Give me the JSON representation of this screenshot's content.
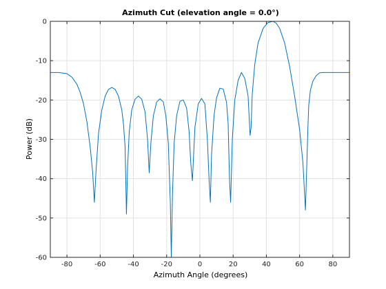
{
  "chart_data": {
    "type": "line",
    "title": "Azimuth Cut (elevation angle = 0.0°)",
    "xlabel": "Azimuth Angle (degrees)",
    "ylabel": "Power (dB)",
    "xlim": [
      -90,
      90
    ],
    "ylim": [
      -60,
      0
    ],
    "xticks": [
      -80,
      -60,
      -40,
      -20,
      0,
      20,
      40,
      60,
      80
    ],
    "yticks": [
      0,
      -10,
      -20,
      -30,
      -40,
      -50,
      -60
    ],
    "grid": true,
    "line_color": "#0072bd",
    "series": [
      {
        "x": [
          -90,
          -85,
          -80,
          -77,
          -74,
          -72,
          -70,
          -68,
          -66,
          -64.5,
          -63.5,
          -62.5,
          -61,
          -59,
          -57,
          -55,
          -53,
          -51,
          -49,
          -47,
          -46,
          -45,
          -44.2,
          -43.5,
          -42.5,
          -41,
          -39,
          -37,
          -35,
          -33,
          -31.5,
          -30.5,
          -29.5,
          -28,
          -26,
          -24,
          -22,
          -20.5,
          -19,
          -17.8,
          -17.2,
          -16.5,
          -15.5,
          -14,
          -12,
          -10,
          -8,
          -6.5,
          -5.5,
          -4.5,
          -3,
          -1,
          1,
          3,
          4.5,
          5.5,
          6.3,
          7,
          8.5,
          10,
          12,
          14,
          16,
          17,
          17.8,
          18.5,
          19.5,
          21,
          23,
          25,
          27,
          29,
          30.2,
          30.8,
          31.5,
          33,
          35,
          38,
          41,
          44,
          46,
          48,
          51,
          54,
          57,
          60,
          62,
          63.5,
          64.5,
          65,
          65.5,
          66.5,
          68,
          70,
          72,
          74,
          77,
          80,
          85,
          90
        ],
        "y": [
          -13,
          -13,
          -13.3,
          -14.2,
          -16,
          -18.1,
          -21,
          -25.5,
          -32,
          -38.5,
          -46,
          -38,
          -28.5,
          -22.5,
          -19,
          -17.3,
          -16.8,
          -17.3,
          -19,
          -22.5,
          -26,
          -32,
          -49,
          -37,
          -28,
          -22.5,
          -19.8,
          -19,
          -19.8,
          -23,
          -30,
          -38.5,
          -31,
          -24,
          -20.5,
          -19.7,
          -20.5,
          -24,
          -31,
          -46,
          -60,
          -44,
          -31,
          -24,
          -20.3,
          -20,
          -22,
          -28,
          -36,
          -40.5,
          -27,
          -21,
          -19.6,
          -21,
          -30,
          -40,
          -46,
          -34,
          -24,
          -19.5,
          -17,
          -17.2,
          -20.5,
          -26,
          -40,
          -46,
          -30,
          -20,
          -15,
          -13,
          -14.5,
          -19,
          -29,
          -27,
          -18.5,
          -11,
          -5.5,
          -1.8,
          -0.3,
          0,
          -0.5,
          -1.8,
          -5.5,
          -11.5,
          -19,
          -27.5,
          -36,
          -48,
          -34,
          -27,
          -21.3,
          -17.5,
          -15.2,
          -13.8,
          -13.1,
          -13,
          -13,
          -13,
          -13,
          -13
        ]
      }
    ]
  }
}
